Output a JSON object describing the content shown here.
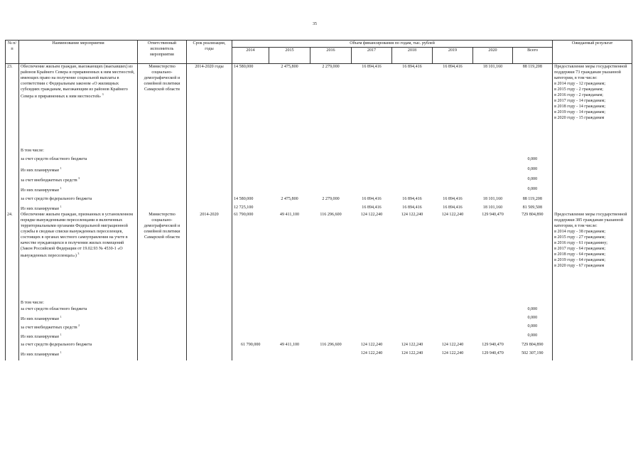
{
  "page_number": "35",
  "headers": {
    "num": "№ п/п",
    "name": "Наименование мероприятия",
    "executor": "Ответственный исполнитель мероприятия",
    "period": "Срок реализации, годы",
    "funding": "Объем финансирования по годам, тыс. рублей",
    "years": [
      "2014",
      "2015",
      "2016",
      "2017",
      "2018",
      "2019",
      "2020",
      "Всего"
    ],
    "result": "Ожидаемый результат"
  },
  "item23": {
    "num": "23.",
    "name": "Обеспечение жильем граждан, выезжающих (выехавших) из районов Крайнего Севера и приравненных к ним местностей, имеющих право на получение социальной выплаты в соответствии с Федеральным законом «О жилищных субсидиях гражданам, выезжающим из районов Крайнего Севера и приравненных к ним местностей»",
    "name_sup": "3",
    "executor": "Министерство социально-демографической и семейной политики Самарской области",
    "period": "2014-2020 годы",
    "values": [
      "14 580,000",
      "2 475,800",
      "2 279,000",
      "16 894,416",
      "16 894,416",
      "16 894,416",
      "18 101,160",
      "88 119,208"
    ],
    "result": [
      "Предоставление меры государственной поддержки 73 гражданам указанной категории, в том числе:",
      "в 2014 году - 12 гражданам;",
      "в 2015 году - 2 гражданам;",
      "в 2016 году - 2 гражданам;",
      "в 2017 году - 14 гражданам;",
      "в 2018 году - 14 гражданам;",
      "в 2019 году - 14 гражданам;",
      "в 2020 году - 15 гражданам"
    ],
    "subrows": [
      {
        "label": "В том числе:",
        "sup": "",
        "values": [
          "",
          "",
          "",
          "",
          "",
          "",
          "",
          ""
        ]
      },
      {
        "label": "за счет средств областного бюджета",
        "sup": "",
        "values": [
          "",
          "",
          "",
          "",
          "",
          "",
          "",
          "0,000"
        ]
      },
      {
        "label": "Из них планируемые",
        "sup": "1",
        "values": [
          "",
          "",
          "",
          "",
          "",
          "",
          "",
          "0,000"
        ]
      },
      {
        "label": "за счет внебюджетных средств",
        "sup": "3",
        "values": [
          "",
          "",
          "",
          "",
          "",
          "",
          "",
          "0,000"
        ]
      },
      {
        "label": "Из них планируемые",
        "sup": "1",
        "values": [
          "",
          "",
          "",
          "",
          "",
          "",
          "",
          "0,000"
        ]
      },
      {
        "label": "за счет средств федерального бюджета",
        "sup": "",
        "values": [
          "14 580,000",
          "2 475,800",
          "2 279,000",
          "16 894,416",
          "16 894,416",
          "16 894,416",
          "18 101,160",
          "88 119,208"
        ]
      },
      {
        "label": "Из них планируемые",
        "sup": "1",
        "values": [
          "12 725,100",
          "",
          "",
          "16 894,416",
          "16 894,416",
          "16 894,416",
          "18 101,160",
          "81 509,508"
        ]
      }
    ]
  },
  "item24": {
    "num": "24.",
    "name": "Обеспечение жильем граждан, признанных в установленном порядке вынужденными переселенцами и включенных территориальными органами Федеральной миграционной службы в сводные списки вынужденных переселенцев, состоящих в органах местного самоуправления на учете в качестве нуждающихся в получении жилых помещений (Закон Российской Федерации от 19.02.93 № 4530-1 «О вынужденных переселенцах»)",
    "name_sup": "3",
    "executor": "Министерство социально-демографической и семейной политики Самарской области",
    "period": "2014-2020",
    "values": [
      "61 790,000",
      "49 411,100",
      "116 296,600",
      "124 122,240",
      "124 122,240",
      "124 122,240",
      "129 940,470",
      "729 804,890"
    ],
    "result": [
      "Предоставление меры государственной поддержки 385 гражданам указанной категории, в том числе:",
      "в 2014 году - 38 гражданам;",
      "в 2015 году - 27 гражданам;",
      "в 2016 году - 61 гражданину;",
      "в 2017 году - 64 гражданам;",
      "в 2018 году - 64 гражданам;",
      "в 2019 году - 64 гражданам;",
      "в 2020 году - 67 гражданам"
    ],
    "subrows": [
      {
        "label": "В том числе:",
        "sup": "",
        "values": [
          "",
          "",
          "",
          "",
          "",
          "",
          "",
          ""
        ]
      },
      {
        "label": "за счет средств областного бюджета",
        "sup": "",
        "values": [
          "",
          "",
          "",
          "",
          "",
          "",
          "",
          "0,000"
        ]
      },
      {
        "label": "Из них планируемые",
        "sup": "1",
        "values": [
          "",
          "",
          "",
          "",
          "",
          "",
          "",
          "0,000"
        ]
      },
      {
        "label": "за счет внебюджетных средств",
        "sup": "2",
        "values": [
          "",
          "",
          "",
          "",
          "",
          "",
          "",
          "0,000"
        ]
      },
      {
        "label": "Из них планируемые",
        "sup": "1",
        "values": [
          "",
          "",
          "",
          "",
          "",
          "",
          "",
          "0,000"
        ]
      },
      {
        "label": "за счет средств федерального бюджета",
        "sup": "",
        "values": [
          "61 790,000",
          "49 411,100",
          "116 296,600",
          "124 122,240",
          "124 122,240",
          "124 122,240",
          "129 940,470",
          "729 804,890"
        ]
      },
      {
        "label": "Из них планируемые",
        "sup": "1",
        "values": [
          "",
          "",
          "",
          "124 122,240",
          "124 122,240",
          "124 122,240",
          "129 940,470",
          "502 307,190"
        ]
      }
    ]
  }
}
